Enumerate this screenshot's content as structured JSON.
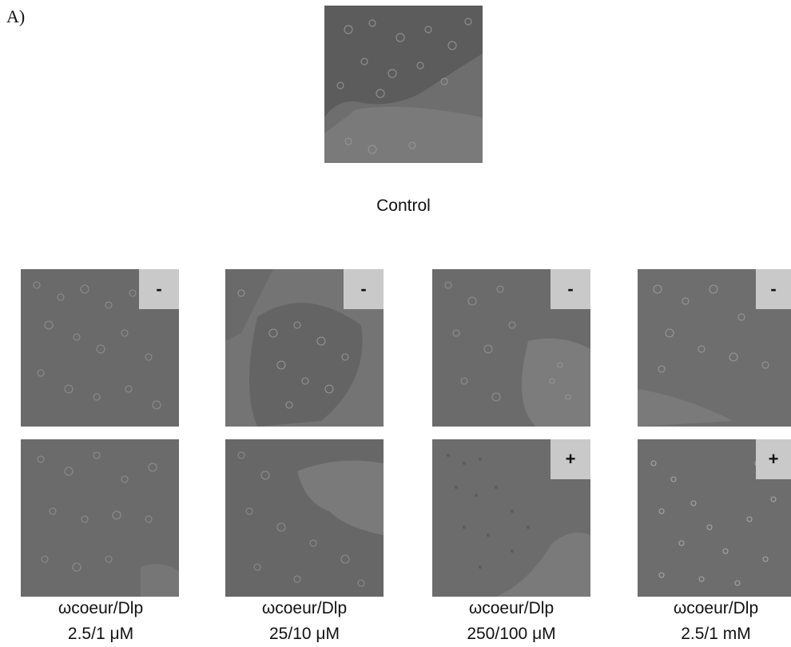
{
  "figure": {
    "panel_label": "A)",
    "control": {
      "caption": "Control"
    },
    "columns": [
      {
        "name_line": "ωcoeur/Dlp",
        "dose_line": "2.5/1 μM",
        "top_badge": "-",
        "bottom_badge": ""
      },
      {
        "name_line": "ωcoeur/Dlp",
        "dose_line": "25/10 μM",
        "top_badge": "-",
        "bottom_badge": ""
      },
      {
        "name_line": "ωcoeur/Dlp",
        "dose_line": "250/100 μM",
        "top_badge": "-",
        "bottom_badge": "+"
      },
      {
        "name_line": "ωcoeur/Dlp",
        "dose_line": "2.5/1 mM",
        "top_badge": "-",
        "bottom_badge": "+"
      }
    ]
  }
}
